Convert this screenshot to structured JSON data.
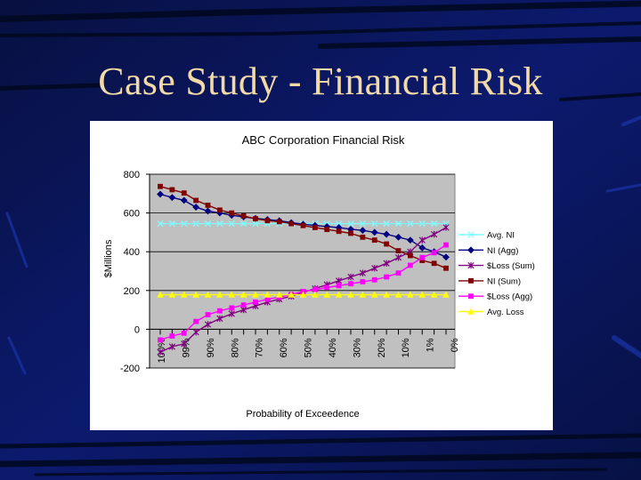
{
  "slide": {
    "title": "Case Study - Financial Risk"
  },
  "chart_data": {
    "type": "line",
    "title": "ABC Corporation Financial Risk",
    "xlabel": "Probability of Exceedence",
    "ylabel": "$Millions",
    "ylim": [
      -200,
      800
    ],
    "yticks": [
      -200,
      0,
      200,
      400,
      600,
      800
    ],
    "xtick_labels": [
      "100%",
      "99%",
      "90%",
      "80%",
      "70%",
      "60%",
      "50%",
      "40%",
      "30%",
      "20%",
      "10%",
      "1%",
      "0%"
    ],
    "grid": "horizontal",
    "legend_position": "right",
    "plot_background": "#c0c0c0",
    "series": [
      {
        "name": "Avg. NI",
        "color": "#80ffff",
        "marker": "x",
        "values": [
          545,
          545,
          545,
          545,
          545,
          545,
          545,
          545,
          545,
          545,
          545,
          545,
          545,
          545,
          545,
          545,
          545,
          545,
          545,
          545,
          545,
          545,
          545,
          545,
          545
        ]
      },
      {
        "name": "NI (Agg)",
        "color": "#000080",
        "marker": "diamond",
        "values": [
          697,
          680,
          665,
          630,
          610,
          600,
          588,
          580,
          572,
          566,
          560,
          550,
          542,
          536,
          530,
          525,
          516,
          510,
          500,
          490,
          475,
          460,
          420,
          400,
          372
        ]
      },
      {
        "name": "$Loss (Sum)",
        "color": "#800080",
        "marker": "star",
        "values": [
          -118,
          -90,
          -75,
          -15,
          25,
          55,
          80,
          100,
          120,
          140,
          155,
          170,
          190,
          210,
          230,
          250,
          270,
          290,
          315,
          340,
          370,
          400,
          460,
          490,
          525
        ]
      },
      {
        "name": "NI (Sum)",
        "color": "#800000",
        "marker": "square",
        "values": [
          737,
          720,
          703,
          665,
          640,
          615,
          600,
          585,
          570,
          560,
          555,
          545,
          535,
          525,
          515,
          505,
          495,
          475,
          460,
          440,
          405,
          380,
          355,
          340,
          315
        ]
      },
      {
        "name": "$Loss (Agg)",
        "color": "#ff00ff",
        "marker": "square",
        "values": [
          -55,
          -35,
          -20,
          40,
          75,
          95,
          110,
          125,
          140,
          155,
          165,
          180,
          195,
          205,
          215,
          225,
          235,
          245,
          255,
          270,
          290,
          330,
          370,
          395,
          435
        ]
      },
      {
        "name": "Avg. Loss",
        "color": "#ffff00",
        "marker": "triangle",
        "values": [
          178,
          178,
          178,
          178,
          178,
          178,
          178,
          178,
          178,
          178,
          178,
          178,
          178,
          178,
          178,
          178,
          178,
          178,
          178,
          178,
          178,
          178,
          178,
          178,
          178
        ]
      }
    ]
  }
}
